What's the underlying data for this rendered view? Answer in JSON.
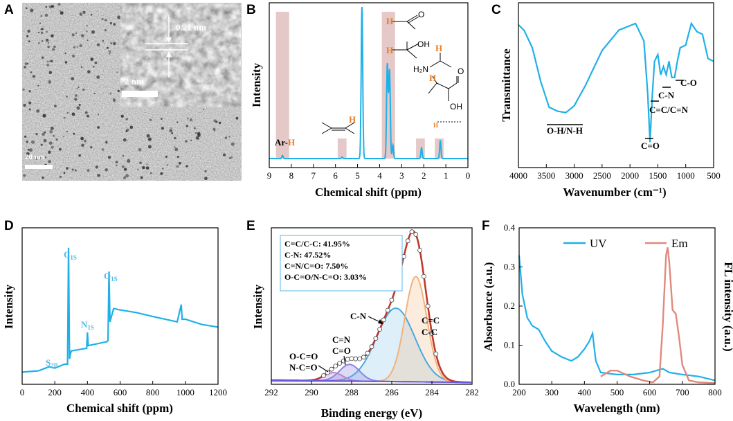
{
  "colors": {
    "cyan": "#1fb0e8",
    "salmon": "#e08a7d",
    "pink_band": "#d9b2b0",
    "red": "#c0392b",
    "orange": "#f0b27a",
    "blue_fit": "#4aa8e0",
    "violet": "#8a86e0",
    "purple": "#9b7cc9",
    "grey": "#9a9a9a"
  },
  "panels": {
    "A": {
      "label": "A",
      "scale_main": "20 nm",
      "scale_inset": "2 nm",
      "lattice": "0.21 nm"
    },
    "B": {
      "label": "B",
      "annot_arh": "Ar-H",
      "annot_h": "H"
    },
    "C": {
      "label": "C",
      "peaks": [
        "O-H/N-H",
        "C=O",
        "C=C/C=N",
        "C-N",
        "C-O"
      ]
    },
    "D": {
      "label": "D",
      "peaks": {
        "c1s_main": "C",
        "c1s_sub": "1S",
        "o1s_main": "O",
        "o1s_sub": "1S",
        "n1s_main": "N",
        "n1s_sub": "1S",
        "s2p_main": "S",
        "s2p_sub": "2P"
      }
    },
    "E": {
      "label": "E",
      "legend": [
        "C=C/C-C: 41.95%",
        "C-N: 47.52%",
        "C=N/C=O: 7.50%",
        "O-C=O/N-C=O: 3.03%"
      ],
      "peak_labels": {
        "cn": "C-N",
        "cc1": "C=C",
        "cc2": "C-C",
        "cno1": "C=N",
        "cno2": "C=O",
        "occ1": "O-C=O",
        "occ2": "N-C=O"
      }
    },
    "F": {
      "label": "F",
      "legend_uv": "UV",
      "legend_em": "Em"
    }
  },
  "chart_data": [
    {
      "panel": "B",
      "type": "line",
      "title": "",
      "xlabel": "Chemical shift (ppm)",
      "ylabel": "Intensity",
      "xlim": [
        9,
        0
      ],
      "x_ticks": [
        "9",
        "8",
        "7",
        "6",
        "5",
        "4",
        "3",
        "2",
        "1",
        "0"
      ],
      "peaks": [
        {
          "ppm": 8.4,
          "height": 0.02
        },
        {
          "ppm": 5.7,
          "height": 0.01
        },
        {
          "ppm": 4.8,
          "height": 1.0
        },
        {
          "ppm": 3.65,
          "height": 0.62
        },
        {
          "ppm": 3.55,
          "height": 0.58
        },
        {
          "ppm": 3.4,
          "height": 0.09
        },
        {
          "ppm": 2.1,
          "height": 0.07
        },
        {
          "ppm": 1.25,
          "height": 0.12
        }
      ],
      "highlight_bands_ppm": [
        [
          8.7,
          8.1
        ],
        [
          5.9,
          5.5
        ],
        [
          3.9,
          3.3
        ],
        [
          2.35,
          1.95
        ],
        [
          1.5,
          1.1
        ]
      ]
    },
    {
      "panel": "C",
      "type": "line",
      "title": "",
      "xlabel": "Wavenumber (cm⁻¹)",
      "ylabel": "Transmittance",
      "xlim": [
        4000,
        500
      ],
      "x_ticks": [
        "4000",
        "3500",
        "3000",
        "2500",
        "2000",
        "1500",
        "1000",
        "500"
      ],
      "x": [
        4000,
        3900,
        3750,
        3600,
        3450,
        3300,
        3150,
        3000,
        2800,
        2500,
        2200,
        1900,
        1750,
        1680,
        1640,
        1600,
        1560,
        1500,
        1450,
        1400,
        1350,
        1300,
        1250,
        1200,
        1150,
        1100,
        1000,
        900,
        800,
        700,
        600,
        500
      ],
      "y": [
        0.97,
        0.93,
        0.8,
        0.55,
        0.36,
        0.33,
        0.32,
        0.37,
        0.52,
        0.78,
        0.93,
        0.98,
        0.85,
        0.45,
        0.1,
        0.45,
        0.7,
        0.75,
        0.6,
        0.66,
        0.6,
        0.7,
        0.58,
        0.58,
        0.7,
        0.8,
        0.82,
        0.98,
        0.92,
        0.9,
        0.72,
        0.7
      ]
    },
    {
      "panel": "D",
      "type": "line",
      "title": "",
      "xlabel": "Chemical shift (ppm)",
      "ylabel": "Intensity",
      "xlim": [
        0,
        1200
      ],
      "x_ticks": [
        "0",
        "200",
        "400",
        "600",
        "800",
        "1000",
        "1200"
      ],
      "x": [
        0,
        100,
        165,
        200,
        260,
        278,
        284,
        290,
        300,
        395,
        400,
        405,
        520,
        526,
        532,
        538,
        560,
        600,
        700,
        800,
        950,
        975,
        980,
        1000,
        1100,
        1200
      ],
      "y": [
        0.04,
        0.05,
        0.08,
        0.07,
        0.1,
        0.1,
        0.98,
        0.14,
        0.2,
        0.22,
        0.34,
        0.24,
        0.27,
        0.28,
        0.8,
        0.42,
        0.52,
        0.51,
        0.49,
        0.46,
        0.42,
        0.55,
        0.44,
        0.44,
        0.4,
        0.38
      ]
    },
    {
      "panel": "E",
      "type": "line",
      "title": "",
      "xlabel": "Binding energy (eV)",
      "ylabel": "Intensity",
      "xlim": [
        292,
        282
      ],
      "x_ticks": [
        "292",
        "290",
        "288",
        "286",
        "284",
        "282"
      ],
      "components": [
        {
          "name": "C=C/C-C",
          "center": 284.8,
          "height": 0.76,
          "width": 0.55
        },
        {
          "name": "C-N",
          "center": 285.8,
          "height": 0.53,
          "width": 0.95
        },
        {
          "name": "C=N/C=O",
          "center": 288.1,
          "height": 0.12,
          "width": 0.5
        },
        {
          "name": "O-C=O/N-C=O",
          "center": 288.9,
          "height": 0.06,
          "width": 0.45
        }
      ]
    },
    {
      "panel": "F",
      "type": "line",
      "title": "",
      "xlabel": "Wavelength (nm)",
      "ylabel": "Absorbance (a.u.)",
      "y2label": "FL intensity (a.u.)",
      "xlim": [
        200,
        800
      ],
      "ylim": [
        0.0,
        0.4
      ],
      "x_ticks": [
        "200",
        "300",
        "400",
        "500",
        "600",
        "700",
        "800"
      ],
      "y_ticks": [
        "0.0",
        "0.1",
        "0.2",
        "0.3",
        "0.4"
      ],
      "series": [
        {
          "name": "UV",
          "x": [
            200,
            210,
            225,
            240,
            260,
            280,
            300,
            330,
            360,
            380,
            400,
            415,
            425,
            435,
            450,
            500,
            550,
            600,
            640,
            660,
            700,
            750,
            800
          ],
          "y": [
            0.33,
            0.23,
            0.17,
            0.15,
            0.14,
            0.11,
            0.085,
            0.07,
            0.06,
            0.07,
            0.09,
            0.11,
            0.13,
            0.06,
            0.03,
            0.025,
            0.025,
            0.03,
            0.04,
            0.03,
            0.025,
            0.02,
            0.01
          ]
        },
        {
          "name": "Em",
          "x": [
            450,
            480,
            500,
            540,
            580,
            610,
            630,
            640,
            650,
            655,
            660,
            670,
            680,
            690,
            700,
            720,
            750,
            800
          ],
          "y": [
            0.02,
            0.035,
            0.035,
            0.02,
            0.01,
            0.005,
            0.02,
            0.15,
            0.33,
            0.35,
            0.31,
            0.19,
            0.18,
            0.12,
            0.05,
            0.01,
            0.005,
            0.003
          ]
        }
      ]
    }
  ]
}
